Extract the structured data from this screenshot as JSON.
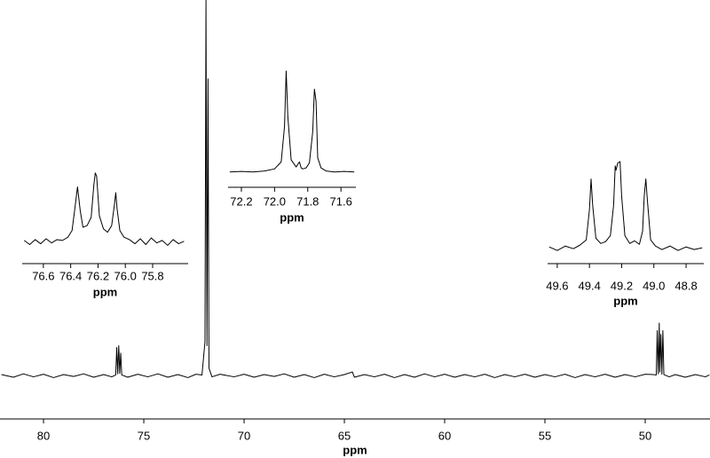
{
  "chart_data": [
    {
      "type": "line",
      "xlabel": "ppm",
      "color": "#000000",
      "xlim": [
        82.17,
        46.77
      ],
      "ylim": [
        -3,
        100
      ],
      "xticks": [
        80,
        75,
        70,
        65,
        60,
        55,
        50
      ],
      "x": [
        82.1,
        81.5,
        81,
        80.5,
        80,
        79.5,
        79,
        78.5,
        78,
        77.5,
        77,
        76.6,
        76.4,
        76.35,
        76.3,
        76.25,
        76.2,
        76.15,
        76.1,
        75.8,
        75.3,
        74.8,
        74.3,
        73.8,
        73.3,
        72.8,
        72.4,
        72.1,
        71.95,
        71.9,
        71.85,
        71.8,
        71.75,
        71.6,
        71.2,
        70.5,
        70,
        69.5,
        69,
        68.5,
        68,
        67.5,
        67,
        66.5,
        66,
        65.5,
        65,
        64.6,
        64.5,
        64,
        63.5,
        63,
        62.5,
        62,
        61.5,
        61,
        60.5,
        60,
        59.5,
        59,
        58.5,
        58,
        57.5,
        57,
        56.5,
        56,
        55.5,
        55,
        54.5,
        54,
        53.5,
        53,
        52.5,
        52,
        51.5,
        51,
        50.5,
        50,
        49.6,
        49.45,
        49.4,
        49.35,
        49.3,
        49.27,
        49.22,
        49.17,
        49.12,
        49.07,
        48.8,
        48.5,
        48,
        47.5,
        47,
        46.8
      ],
      "values": [
        0.3,
        -0.4,
        0.5,
        -0.3,
        0.4,
        -0.5,
        0.3,
        -0.2,
        0.5,
        -0.4,
        0.3,
        -0.3,
        0.2,
        7.5,
        0.5,
        8,
        0.6,
        6,
        0.2,
        -0.4,
        0.4,
        -0.3,
        0.5,
        -0.4,
        0.3,
        -0.5,
        0.4,
        0.2,
        9,
        100,
        8,
        79,
        2,
        -0.3,
        0.4,
        -0.3,
        0.4,
        -0.4,
        0.3,
        -0.2,
        0.5,
        -0.4,
        0.3,
        -0.5,
        0.4,
        -0.3,
        0.3,
        1,
        -0.4,
        0.3,
        -0.3,
        0.4,
        -0.5,
        0.3,
        -0.4,
        0.5,
        -0.3,
        0.4,
        -0.4,
        0.3,
        -0.3,
        0.4,
        -0.5,
        0.3,
        -0.3,
        0.4,
        -0.4,
        0.3,
        -0.3,
        0.4,
        -0.5,
        0.3,
        -0.3,
        0.4,
        -0.4,
        0.3,
        -0.3,
        0.4,
        0.3,
        0.2,
        12,
        0.5,
        14,
        1,
        11,
        0.4,
        12,
        0.3,
        -0.3,
        0.3,
        -0.4,
        0.3,
        -0.3,
        0.2
      ]
    },
    {
      "type": "line",
      "xlabel": "ppm",
      "color": "#000000",
      "xlim": [
        76.755,
        75.54
      ],
      "ylim": [
        -10,
        100
      ],
      "xticks": [
        76.6,
        76.4,
        76.2,
        {
          "value": 76,
          "label": "76.0"
        },
        75.8
      ],
      "x": [
        76.74,
        76.7,
        76.66,
        76.62,
        76.58,
        76.54,
        76.5,
        76.46,
        76.42,
        76.39,
        76.37,
        76.35,
        76.33,
        76.31,
        76.28,
        76.25,
        76.23,
        76.22,
        76.21,
        76.19,
        76.16,
        76.13,
        76.1,
        76.08,
        76.07,
        76.06,
        76.04,
        76.01,
        75.97,
        75.93,
        75.89,
        75.85,
        75.81,
        75.77,
        75.73,
        75.69,
        75.65,
        75.61,
        75.57
      ],
      "values": [
        2,
        -3,
        3,
        -2,
        4,
        -1,
        3,
        2,
        6,
        14,
        40,
        67,
        38,
        18,
        20,
        30,
        70,
        84,
        80,
        32,
        16,
        12,
        20,
        45,
        60,
        40,
        14,
        6,
        3,
        -2,
        4,
        -3,
        5,
        -1,
        2,
        -4,
        3,
        -2,
        1
      ]
    },
    {
      "type": "line",
      "xlabel": "ppm",
      "color": "#000000",
      "xlim": [
        72.28,
        71.51
      ],
      "ylim": [
        -2,
        100
      ],
      "xticks": [
        72.2,
        {
          "value": 72,
          "label": "72.0"
        },
        71.8,
        71.6
      ],
      "x": [
        72.27,
        72.2,
        72.13,
        72.06,
        72.0,
        71.96,
        71.94,
        71.93,
        71.92,
        71.9,
        71.87,
        71.85,
        71.84,
        71.83,
        71.81,
        71.79,
        71.77,
        71.76,
        71.75,
        71.74,
        71.72,
        71.69,
        71.64,
        71.58,
        71.52
      ],
      "values": [
        0,
        0.5,
        0,
        1,
        3,
        10,
        45,
        100,
        55,
        12,
        5,
        10,
        4,
        3,
        4,
        9,
        40,
        82,
        70,
        14,
        4,
        1,
        0,
        0.5,
        0
      ]
    },
    {
      "type": "line",
      "xlabel": "ppm",
      "color": "#000000",
      "xlim": [
        49.66,
        48.69
      ],
      "ylim": [
        -10,
        100
      ],
      "xticks": [
        49.6,
        49.4,
        49.2,
        {
          "value": 49,
          "label": "49.0"
        },
        48.8
      ],
      "x": [
        49.65,
        49.6,
        49.55,
        49.5,
        49.46,
        49.42,
        49.4,
        49.39,
        49.38,
        49.36,
        49.33,
        49.3,
        49.27,
        49.25,
        49.24,
        49.235,
        49.225,
        49.21,
        49.2,
        49.18,
        49.15,
        49.12,
        49.09,
        49.07,
        49.06,
        49.05,
        49.04,
        49.02,
        48.99,
        48.95,
        48.9,
        48.85,
        48.8,
        48.75,
        48.7
      ],
      "values": [
        2,
        -2,
        3,
        0,
        4,
        10,
        45,
        80,
        50,
        12,
        6,
        8,
        15,
        50,
        95,
        90,
        98,
        100,
        60,
        15,
        6,
        9,
        5,
        20,
        60,
        80,
        55,
        10,
        3,
        -1,
        3,
        -2,
        2,
        -1,
        1
      ]
    }
  ]
}
